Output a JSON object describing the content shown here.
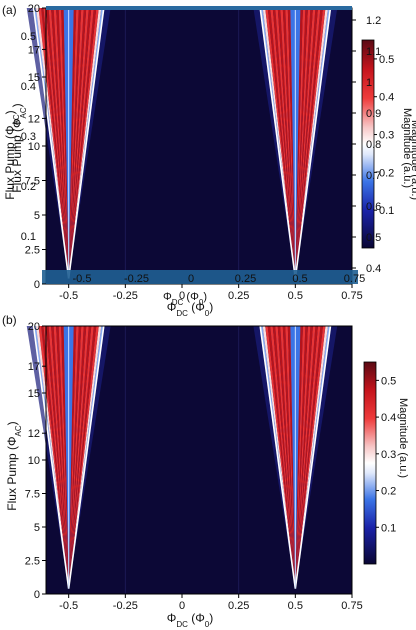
{
  "chart_data": [
    {
      "type": "heatmap",
      "panel_label": "(a)",
      "xlabel": "Φ_DC (Φ0)",
      "ylabel": "Flux Pump (Φ_AC)",
      "xlim": [
        -0.6,
        0.75
      ],
      "ylim": [
        0,
        20
      ],
      "x_ticks": [
        "-0.5",
        "-0.25",
        "0",
        "0.25",
        "0.5",
        "0.75"
      ],
      "y_ticks": [
        "0",
        "2.5",
        "5",
        "7.5",
        "10",
        "12",
        "15",
        "17",
        "20"
      ],
      "colorbar_label": "Magnitude (a.u.)",
      "colorbar_ticks": [
        "0.1",
        "0.2",
        "0.3",
        "0.4",
        "0.5"
      ],
      "overlay_colorbar_ticks": [
        "0.4",
        "0.5",
        "0.6",
        "0.7",
        "0.8",
        "0.9",
        "1",
        "1.1",
        "1.2"
      ],
      "overlay_left_ticks": [
        "0.1",
        "0.2",
        "0.3",
        "0.4",
        "0.5"
      ],
      "overlay_bottom_ticks": [
        "-0.5",
        "-0.25",
        "0",
        "0.25",
        "0.5",
        "0.75"
      ],
      "overlay_xlabel": "Φ_DC (Φ0)",
      "cones": [
        {
          "center": -0.5,
          "halfwidth_at_ymax": 0.155
        },
        {
          "center": 0.5,
          "halfwidth_at_ymax": 0.155
        }
      ],
      "value_range": [
        0.0,
        0.55
      ]
    },
    {
      "type": "heatmap",
      "panel_label": "(b)",
      "xlabel": "Φ_DC (Φ0)",
      "ylabel": "Flux Pump (Φ_AC)",
      "xlim": [
        -0.6,
        0.75
      ],
      "ylim": [
        0,
        20
      ],
      "x_ticks": [
        "-0.5",
        "-0.25",
        "0",
        "0.25",
        "0.5",
        "0.75"
      ],
      "y_ticks": [
        "0",
        "2.5",
        "5",
        "7.5",
        "10",
        "12",
        "15",
        "17",
        "20"
      ],
      "colorbar_label": "Magnitude (a.u.)",
      "colorbar_ticks": [
        "0.1",
        "0.2",
        "0.3",
        "0.4",
        "0.5"
      ],
      "cones": [
        {
          "center": -0.5,
          "halfwidth_at_ymax": 0.155
        },
        {
          "center": 0.5,
          "halfwidth_at_ymax": 0.155
        }
      ],
      "value_range": [
        0.0,
        0.55
      ]
    }
  ]
}
